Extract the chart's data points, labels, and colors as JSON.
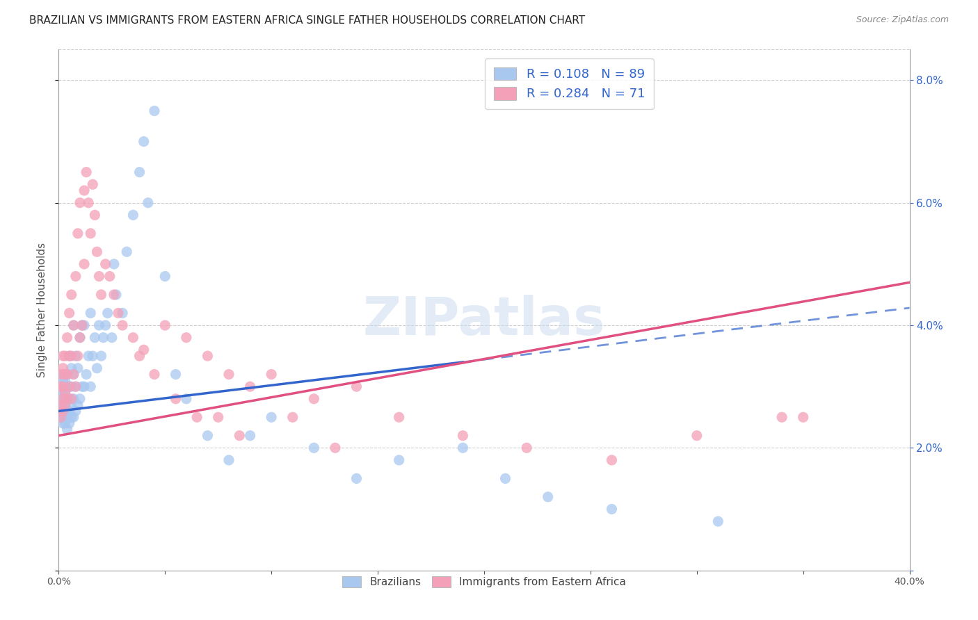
{
  "title": "BRAZILIAN VS IMMIGRANTS FROM EASTERN AFRICA SINGLE FATHER HOUSEHOLDS CORRELATION CHART",
  "source": "Source: ZipAtlas.com",
  "ylabel": "Single Father Households",
  "x_min": 0.0,
  "x_max": 0.4,
  "y_min": 0.0,
  "y_max": 0.085,
  "x_ticks": [
    0.0,
    0.05,
    0.1,
    0.15,
    0.2,
    0.25,
    0.3,
    0.35,
    0.4
  ],
  "y_ticks": [
    0.0,
    0.02,
    0.04,
    0.06,
    0.08
  ],
  "brazil_color": "#a8c8f0",
  "eastafrica_color": "#f4a0b8",
  "brazil_line_color": "#3366cc",
  "eastafrica_line_color": "#e05080",
  "brazil_R": 0.108,
  "brazil_N": 89,
  "eastafrica_R": 0.284,
  "eastafrica_N": 71,
  "watermark": "ZIPatlas",
  "background_color": "#ffffff",
  "grid_color": "#cccccc",
  "axis_color": "#999999",
  "title_fontsize": 11,
  "tick_fontsize": 10,
  "label_fontsize": 11,
  "brazil_scatter_x": [
    0.001,
    0.001,
    0.001,
    0.001,
    0.001,
    0.002,
    0.002,
    0.002,
    0.002,
    0.002,
    0.002,
    0.002,
    0.002,
    0.003,
    0.003,
    0.003,
    0.003,
    0.003,
    0.003,
    0.003,
    0.003,
    0.003,
    0.004,
    0.004,
    0.004,
    0.004,
    0.004,
    0.004,
    0.005,
    0.005,
    0.005,
    0.005,
    0.005,
    0.006,
    0.006,
    0.006,
    0.006,
    0.007,
    0.007,
    0.007,
    0.007,
    0.008,
    0.008,
    0.008,
    0.009,
    0.009,
    0.01,
    0.01,
    0.011,
    0.011,
    0.012,
    0.012,
    0.013,
    0.014,
    0.015,
    0.015,
    0.016,
    0.017,
    0.018,
    0.019,
    0.02,
    0.021,
    0.022,
    0.023,
    0.025,
    0.026,
    0.027,
    0.03,
    0.032,
    0.035,
    0.038,
    0.04,
    0.042,
    0.045,
    0.05,
    0.055,
    0.06,
    0.07,
    0.08,
    0.09,
    0.1,
    0.12,
    0.14,
    0.16,
    0.19,
    0.21,
    0.23,
    0.26,
    0.31
  ],
  "brazil_scatter_y": [
    0.025,
    0.026,
    0.027,
    0.028,
    0.03,
    0.024,
    0.025,
    0.027,
    0.028,
    0.029,
    0.03,
    0.031,
    0.032,
    0.024,
    0.025,
    0.026,
    0.027,
    0.028,
    0.029,
    0.03,
    0.031,
    0.032,
    0.023,
    0.025,
    0.026,
    0.028,
    0.03,
    0.032,
    0.024,
    0.026,
    0.028,
    0.03,
    0.035,
    0.025,
    0.027,
    0.03,
    0.033,
    0.025,
    0.028,
    0.032,
    0.04,
    0.026,
    0.03,
    0.035,
    0.027,
    0.033,
    0.028,
    0.038,
    0.03,
    0.04,
    0.03,
    0.04,
    0.032,
    0.035,
    0.03,
    0.042,
    0.035,
    0.038,
    0.033,
    0.04,
    0.035,
    0.038,
    0.04,
    0.042,
    0.038,
    0.05,
    0.045,
    0.042,
    0.052,
    0.058,
    0.065,
    0.07,
    0.06,
    0.075,
    0.048,
    0.032,
    0.028,
    0.022,
    0.018,
    0.022,
    0.025,
    0.02,
    0.015,
    0.018,
    0.02,
    0.015,
    0.012,
    0.01,
    0.008
  ],
  "eastafrica_scatter_x": [
    0.001,
    0.001,
    0.001,
    0.001,
    0.002,
    0.002,
    0.002,
    0.002,
    0.002,
    0.003,
    0.003,
    0.003,
    0.003,
    0.004,
    0.004,
    0.004,
    0.005,
    0.005,
    0.005,
    0.006,
    0.006,
    0.006,
    0.007,
    0.007,
    0.008,
    0.008,
    0.009,
    0.009,
    0.01,
    0.01,
    0.011,
    0.012,
    0.012,
    0.013,
    0.014,
    0.015,
    0.016,
    0.017,
    0.018,
    0.019,
    0.02,
    0.022,
    0.024,
    0.026,
    0.028,
    0.03,
    0.035,
    0.04,
    0.05,
    0.06,
    0.07,
    0.08,
    0.09,
    0.1,
    0.12,
    0.14,
    0.16,
    0.19,
    0.22,
    0.26,
    0.3,
    0.34,
    0.038,
    0.045,
    0.055,
    0.065,
    0.075,
    0.085,
    0.11,
    0.13,
    0.35
  ],
  "eastafrica_scatter_y": [
    0.025,
    0.027,
    0.03,
    0.032,
    0.026,
    0.028,
    0.03,
    0.033,
    0.035,
    0.027,
    0.029,
    0.032,
    0.035,
    0.028,
    0.032,
    0.038,
    0.03,
    0.035,
    0.042,
    0.028,
    0.035,
    0.045,
    0.032,
    0.04,
    0.03,
    0.048,
    0.035,
    0.055,
    0.038,
    0.06,
    0.04,
    0.05,
    0.062,
    0.065,
    0.06,
    0.055,
    0.063,
    0.058,
    0.052,
    0.048,
    0.045,
    0.05,
    0.048,
    0.045,
    0.042,
    0.04,
    0.038,
    0.036,
    0.04,
    0.038,
    0.035,
    0.032,
    0.03,
    0.032,
    0.028,
    0.03,
    0.025,
    0.022,
    0.02,
    0.018,
    0.022,
    0.025,
    0.035,
    0.032,
    0.028,
    0.025,
    0.025,
    0.022,
    0.025,
    0.02,
    0.025
  ]
}
